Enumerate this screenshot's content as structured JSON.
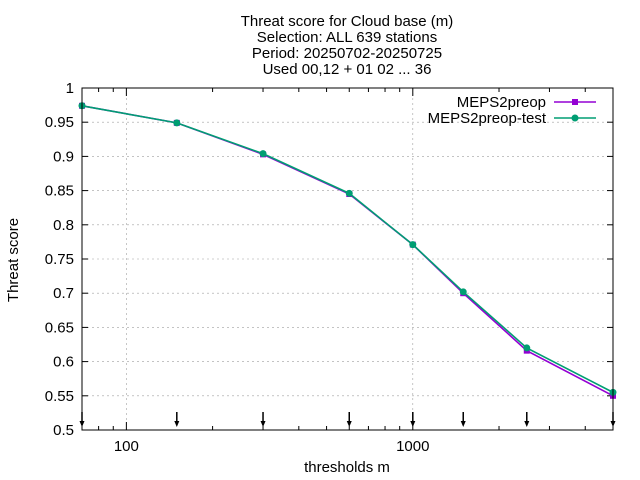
{
  "chart_data": {
    "type": "line",
    "title_lines": [
      "Threat score  for Cloud base (m)",
      "Selection: ALL    639 stations",
      "Period: 20250702-20250725",
      "Used 00,12 + 01 02 ... 36"
    ],
    "xlabel": "thresholds m",
    "ylabel": "Threat score",
    "x_scale": "log",
    "xlim": [
      70,
      5000
    ],
    "ylim": [
      0.5,
      1.0
    ],
    "x_ticks": [
      100,
      1000
    ],
    "x_tick_labels": [
      "100",
      "1000"
    ],
    "y_ticks": [
      0.5,
      0.55,
      0.6,
      0.65,
      0.7,
      0.75,
      0.8,
      0.85,
      0.9,
      0.95,
      1.0
    ],
    "y_tick_labels": [
      "0.5",
      "0.55",
      "0.6",
      "0.65",
      "0.7",
      "0.75",
      "0.8",
      "0.85",
      "0.9",
      "0.95",
      "1"
    ],
    "grid": true,
    "legend_position": "top-right",
    "x": [
      70,
      150,
      300,
      600,
      1000,
      1500,
      2500,
      5000
    ],
    "series": [
      {
        "name": "MEPS2preop",
        "color": "#9400d3",
        "marker": "square",
        "values": [
          0.974,
          0.949,
          0.903,
          0.845,
          0.771,
          0.7,
          0.616,
          0.55
        ]
      },
      {
        "name": "MEPS2preop-test",
        "color": "#009e73",
        "marker": "circle",
        "values": [
          0.974,
          0.949,
          0.904,
          0.846,
          0.771,
          0.702,
          0.62,
          0.555
        ]
      }
    ],
    "threshold_marks": [
      70,
      150,
      300,
      600,
      1000,
      1500,
      2500,
      5000
    ]
  }
}
